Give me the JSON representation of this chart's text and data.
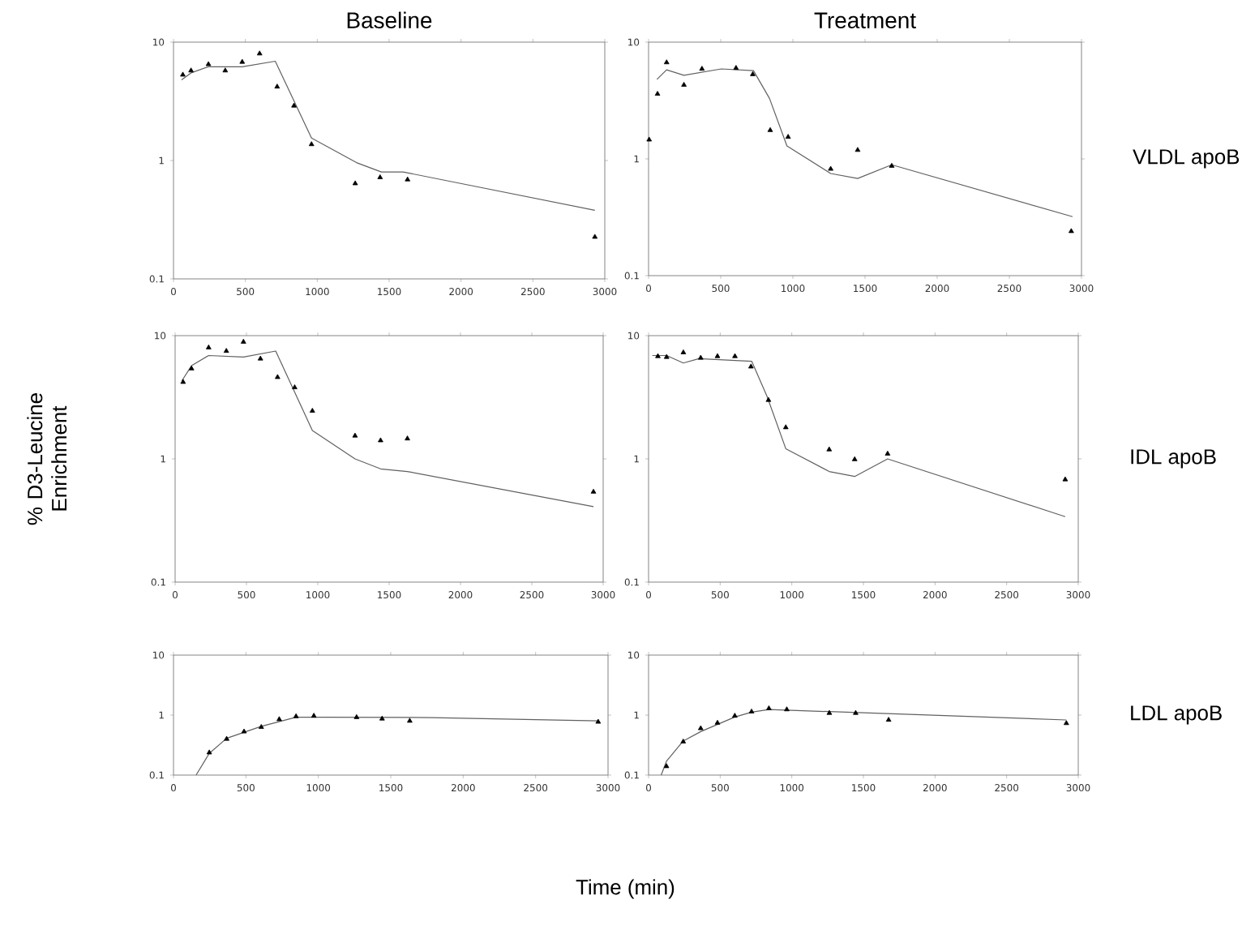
{
  "chart_data": [
    {
      "type": "line",
      "title": "Baseline",
      "log": "y",
      "xlim": [
        0,
        3000
      ],
      "xticks": [
        0,
        500,
        1000,
        1500,
        2000,
        2500,
        3000
      ],
      "ylim": [
        0.1,
        10
      ],
      "yticks": [
        0.1,
        1,
        10
      ],
      "series": [
        {
          "type": "scatter",
          "marker": "triangle",
          "color": "#000000",
          "x": [
            65,
            122,
            243,
            360,
            478,
            599,
            721,
            838,
            960,
            1264,
            1437,
            1628,
            2931
          ],
          "values": [
            5.3,
            5.75,
            6.5,
            5.75,
            6.8,
            8.0,
            4.2,
            2.9,
            1.37,
            0.64,
            0.72,
            0.69,
            0.226
          ]
        },
        {
          "type": "line",
          "marker": "none",
          "color": "#606060",
          "x": [
            56,
            122,
            243,
            478,
            708,
            960,
            1273,
            1446,
            1598,
            2931
          ],
          "values": [
            4.8,
            5.5,
            6.2,
            6.2,
            6.9,
            1.55,
            0.96,
            0.8,
            0.8,
            0.38
          ]
        }
      ]
    },
    {
      "type": "line",
      "title": "Treatment",
      "annotations": [
        "VLDL apoB"
      ],
      "log": "y",
      "xlim": [
        0,
        3000
      ],
      "xticks": [
        0,
        500,
        1000,
        1500,
        2000,
        2500,
        3000
      ],
      "ylim": [
        0.1,
        10
      ],
      "yticks": [
        0.1,
        1,
        10
      ],
      "series": [
        {
          "type": "scatter",
          "marker": "triangle",
          "color": "#000000",
          "x": [
            4,
            62,
            125,
            245,
            370,
            606,
            722,
            843,
            967,
            1262,
            1449,
            1685,
            2929
          ],
          "values": [
            1.46,
            3.6,
            6.7,
            4.3,
            5.9,
            6.0,
            5.3,
            1.76,
            1.54,
            0.82,
            1.19,
            0.87,
            0.24
          ]
        },
        {
          "type": "line",
          "marker": "none",
          "color": "#606060",
          "x": [
            58,
            125,
            245,
            504,
            727,
            838,
            959,
            1262,
            1449,
            1685,
            2938
          ],
          "values": [
            4.8,
            5.8,
            5.2,
            5.9,
            5.7,
            3.3,
            1.29,
            0.75,
            0.68,
            0.89,
            0.32
          ]
        }
      ]
    },
    {
      "type": "line",
      "ylabel": "% D3-Leucine Enrichment",
      "log": "y",
      "xlim": [
        0,
        3000
      ],
      "xticks": [
        0,
        500,
        1000,
        1500,
        2000,
        2500,
        3000
      ],
      "ylim": [
        0.1,
        10
      ],
      "yticks": [
        0.1,
        1,
        10
      ],
      "series": [
        {
          "type": "scatter",
          "marker": "triangle",
          "color": "#000000",
          "x": [
            56,
            115,
            235,
            359,
            479,
            598,
            718,
            838,
            962,
            1261,
            1440,
            1628,
            2932
          ],
          "values": [
            4.2,
            5.4,
            8.0,
            7.5,
            8.9,
            6.5,
            4.6,
            3.8,
            2.45,
            1.54,
            1.41,
            1.46,
            0.54
          ]
        },
        {
          "type": "line",
          "marker": "none",
          "color": "#606060",
          "x": [
            47,
            115,
            235,
            479,
            705,
            962,
            1261,
            1440,
            1628,
            2932
          ],
          "values": [
            4.3,
            5.7,
            6.9,
            6.7,
            7.5,
            1.7,
            1.0,
            0.83,
            0.79,
            0.41
          ]
        }
      ]
    },
    {
      "type": "line",
      "annotations": [
        "IDL apoB"
      ],
      "log": "y",
      "xlim": [
        0,
        3000
      ],
      "xticks": [
        0,
        500,
        1000,
        1500,
        2000,
        2500,
        3000
      ],
      "ylim": [
        0.1,
        10
      ],
      "yticks": [
        0.1,
        1,
        10
      ],
      "series": [
        {
          "type": "scatter",
          "marker": "triangle",
          "color": "#000000",
          "x": [
            65,
            126,
            243,
            364,
            481,
            603,
            715,
            837,
            958,
            1261,
            1439,
            1669,
            2909
          ],
          "values": [
            6.8,
            6.7,
            7.3,
            6.6,
            6.8,
            6.8,
            5.6,
            3.0,
            1.8,
            1.19,
            0.99,
            1.1,
            0.68
          ]
        },
        {
          "type": "line",
          "marker": "none",
          "color": "#606060",
          "x": [
            26,
            126,
            243,
            351,
            720,
            828,
            958,
            1261,
            1439,
            1669,
            2909
          ],
          "values": [
            6.9,
            6.9,
            6.0,
            6.5,
            6.2,
            3.2,
            1.21,
            0.79,
            0.72,
            1.0,
            0.34
          ]
        }
      ]
    },
    {
      "type": "line",
      "xlabel": "Time (min)",
      "log": "y",
      "xlim": [
        0,
        3000
      ],
      "xticks": [
        0,
        500,
        1000,
        1500,
        2000,
        2500,
        3000
      ],
      "ylim": [
        0.1,
        10
      ],
      "yticks": [
        0.1,
        1,
        10
      ],
      "series": [
        {
          "type": "scatter",
          "marker": "triangle",
          "color": "#000000",
          "x": [
            247,
            367,
            487,
            606,
            730,
            846,
            969,
            1264,
            1440,
            1631,
            2932
          ],
          "values": [
            0.237,
            0.4,
            0.53,
            0.63,
            0.85,
            0.95,
            0.97,
            0.92,
            0.87,
            0.8,
            0.77
          ]
        },
        {
          "type": "line",
          "marker": "none",
          "color": "#606060",
          "x": [
            156,
            247,
            367,
            606,
            846,
            1025,
            1783,
            2932
          ],
          "values": [
            0.1,
            0.23,
            0.41,
            0.65,
            0.92,
            0.92,
            0.91,
            0.8
          ]
        }
      ]
    },
    {
      "type": "line",
      "annotations": [
        "LDL apoB"
      ],
      "log": "y",
      "xlim": [
        0,
        3000
      ],
      "xticks": [
        0,
        500,
        1000,
        1500,
        2000,
        2500,
        3000
      ],
      "ylim": [
        0.1,
        10
      ],
      "yticks": [
        0.1,
        1,
        10
      ],
      "series": [
        {
          "type": "scatter",
          "marker": "triangle",
          "color": "#000000",
          "x": [
            125,
            242,
            364,
            481,
            602,
            719,
            840,
            965,
            1262,
            1446,
            1676,
            2917
          ],
          "values": [
            0.14,
            0.36,
            0.6,
            0.74,
            0.97,
            1.14,
            1.29,
            1.24,
            1.08,
            1.08,
            0.83,
            0.73
          ]
        },
        {
          "type": "line",
          "marker": "none",
          "color": "#606060",
          "x": [
            88,
            125,
            242,
            364,
            602,
            719,
            840,
            2917
          ],
          "values": [
            0.1,
            0.17,
            0.37,
            0.53,
            0.93,
            1.12,
            1.24,
            0.83
          ]
        }
      ]
    }
  ]
}
